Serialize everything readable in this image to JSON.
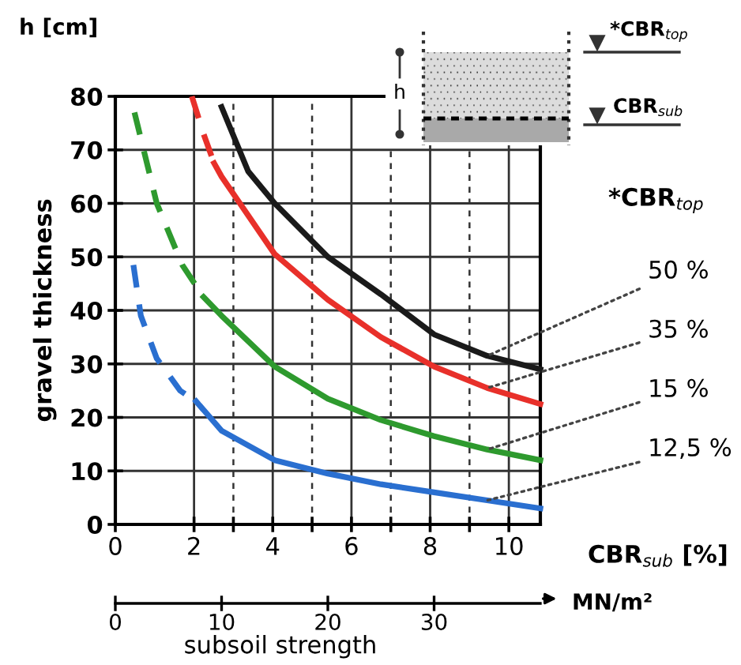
{
  "chart_data": {
    "type": "line",
    "ylabel": "gravel thickness",
    "xlabel": "subsoil strength",
    "x2label": "CBR$_{sub}$ [%]",
    "legend_title": "*CBR$_{top}$",
    "annotations": [
      "h [cm]",
      "MN/m²",
      "h",
      "*CBR$_{top}$",
      "CBR$_{sub}$"
    ],
    "xlim": [
      0,
      40
    ],
    "xticks": [
      0,
      10,
      20,
      30
    ],
    "x2lim": [
      0,
      10.8
    ],
    "x2ticks": [
      0,
      2,
      {
        "value": 3,
        "label": null
      },
      4,
      {
        "value": 5,
        "label": null
      },
      6,
      {
        "value": 7,
        "label": null
      },
      8,
      {
        "value": 9,
        "label": null
      },
      10
    ],
    "ylim": [
      0,
      80
    ],
    "yticks": [
      0,
      10,
      20,
      30,
      40,
      50,
      60,
      70,
      80
    ],
    "grid": true,
    "legend": false,
    "marker": "none",
    "series": [
      {
        "name": "50 %",
        "color": "#1a1a1a",
        "x": [
          10,
          12.5,
          15,
          20,
          25,
          30,
          35,
          40
        ],
        "values": [
          78,
          66,
          60,
          50,
          43,
          35.5,
          31.5,
          29
        ]
      },
      {
        "name": "35 %",
        "color": "#e8302a",
        "x": [
          9.3,
          10,
          15,
          20,
          25,
          30,
          35,
          40
        ],
        "values": [
          67.5,
          65,
          50.5,
          42,
          35,
          29.5,
          25.5,
          22.5
        ]
      },
      {
        "name": "15 %",
        "color": "#2e9a2e",
        "x": [
          8.3,
          10,
          15,
          20,
          25,
          30,
          35,
          40
        ],
        "values": [
          42.5,
          39,
          29.5,
          23.5,
          19.5,
          16.5,
          14,
          12
        ]
      },
      {
        "name": "12,5 %",
        "color": "#2a6fd0",
        "x": [
          7.6,
          10,
          15,
          20,
          25,
          30,
          35,
          40
        ],
        "values": [
          23,
          17.5,
          12,
          9.5,
          7.5,
          6,
          4.5,
          3
        ]
      },
      {
        "color": "#e8302a",
        "line_style": "dashed",
        "x": [
          7.2,
          8.3,
          9.3
        ],
        "values": [
          80,
          73,
          67.5
        ]
      },
      {
        "color": "#2e9a2e",
        "line_style": "dashed",
        "x": [
          1.8,
          3.9,
          6.3,
          8.3
        ],
        "values": [
          77,
          60,
          48.5,
          42.5
        ]
      },
      {
        "color": "#2a6fd0",
        "line_style": "dashed",
        "x": [
          1.7,
          2.4,
          3.9,
          6.1,
          7.6
        ],
        "values": [
          48.5,
          39,
          31,
          25,
          23
        ]
      }
    ]
  }
}
